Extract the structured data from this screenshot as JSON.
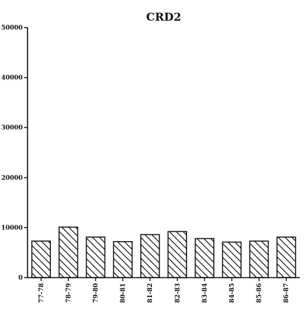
{
  "chart_data": {
    "type": "bar",
    "title": "CRD2",
    "xlabel": "",
    "ylabel": "",
    "categories": [
      "77-78",
      "78-79",
      "79-80",
      "80-81",
      "81-82",
      "82-83",
      "83-84",
      "84-85",
      "85-86",
      "86-87"
    ],
    "values": [
      7300,
      10100,
      8100,
      7200,
      8600,
      9200,
      7800,
      7100,
      7300,
      8100
    ],
    "ylim": [
      0,
      50000
    ],
    "yticks": [
      0,
      10000,
      20000,
      30000,
      40000,
      50000
    ],
    "ytick_labels": [
      "0",
      "10000",
      "20000",
      "30000",
      "40000",
      "50000"
    ],
    "grid": false,
    "bar_fill": "diagonal-hatch",
    "colors": {
      "ink": "#111111",
      "background": "#ffffff"
    }
  }
}
